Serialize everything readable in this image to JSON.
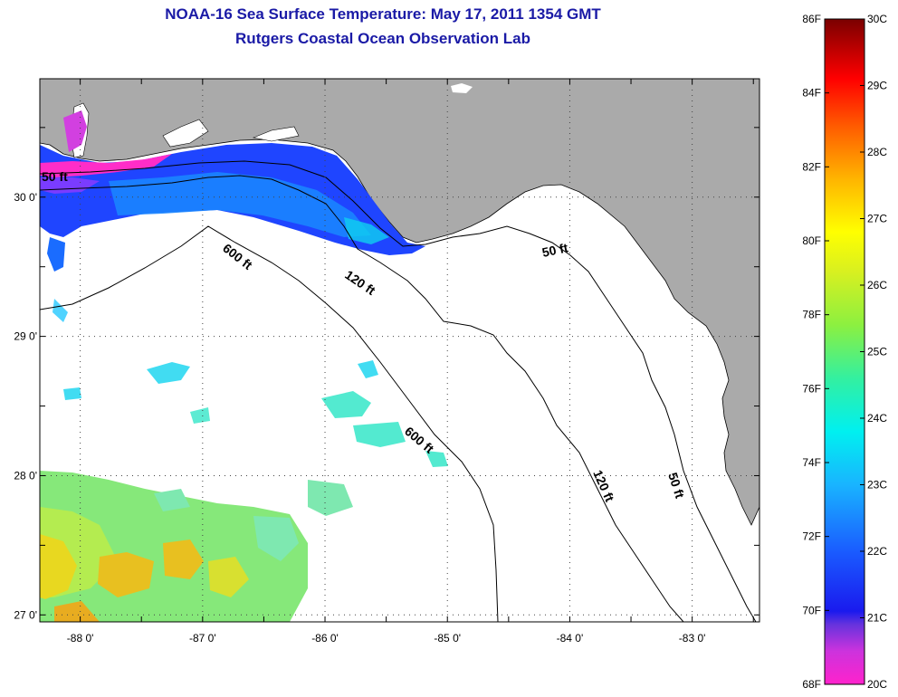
{
  "title": "NOAA-16 Sea Surface Temperature:  May 17, 2011 1354 GMT",
  "subtitle": "Rutgers Coastal Ocean Observation Lab",
  "map": {
    "lon_ticks": [
      "-88 0'",
      "-87 0'",
      "-86 0'",
      "-85 0'",
      "-84 0'",
      "-83 0'"
    ],
    "lon_values": [
      -88,
      -87,
      -86,
      -85,
      -84,
      -83
    ],
    "lat_ticks": [
      "30 0'",
      "29 0'",
      "28 0'",
      "27 0'"
    ],
    "lat_values": [
      30,
      29,
      28,
      27
    ],
    "lon_range": [
      -88.33,
      -82.45
    ],
    "lat_range": [
      26.95,
      30.85
    ],
    "contours": [
      "50 ft",
      "600 ft",
      "120 ft",
      "50 ft",
      "600 ft",
      "120 ft",
      "50 ft"
    ],
    "land_color": "#aaaaaa",
    "water_color": "#ffffff"
  },
  "colorbar": {
    "fahrenheit": [
      "86F",
      "84F",
      "82F",
      "80F",
      "78F",
      "76F",
      "74F",
      "72F",
      "70F",
      "68F"
    ],
    "celsius": [
      "30C",
      "29C",
      "28C",
      "27C",
      "26C",
      "25C",
      "24C",
      "23C",
      "22C",
      "21C",
      "20C"
    ],
    "range_c": [
      20,
      30
    ]
  }
}
